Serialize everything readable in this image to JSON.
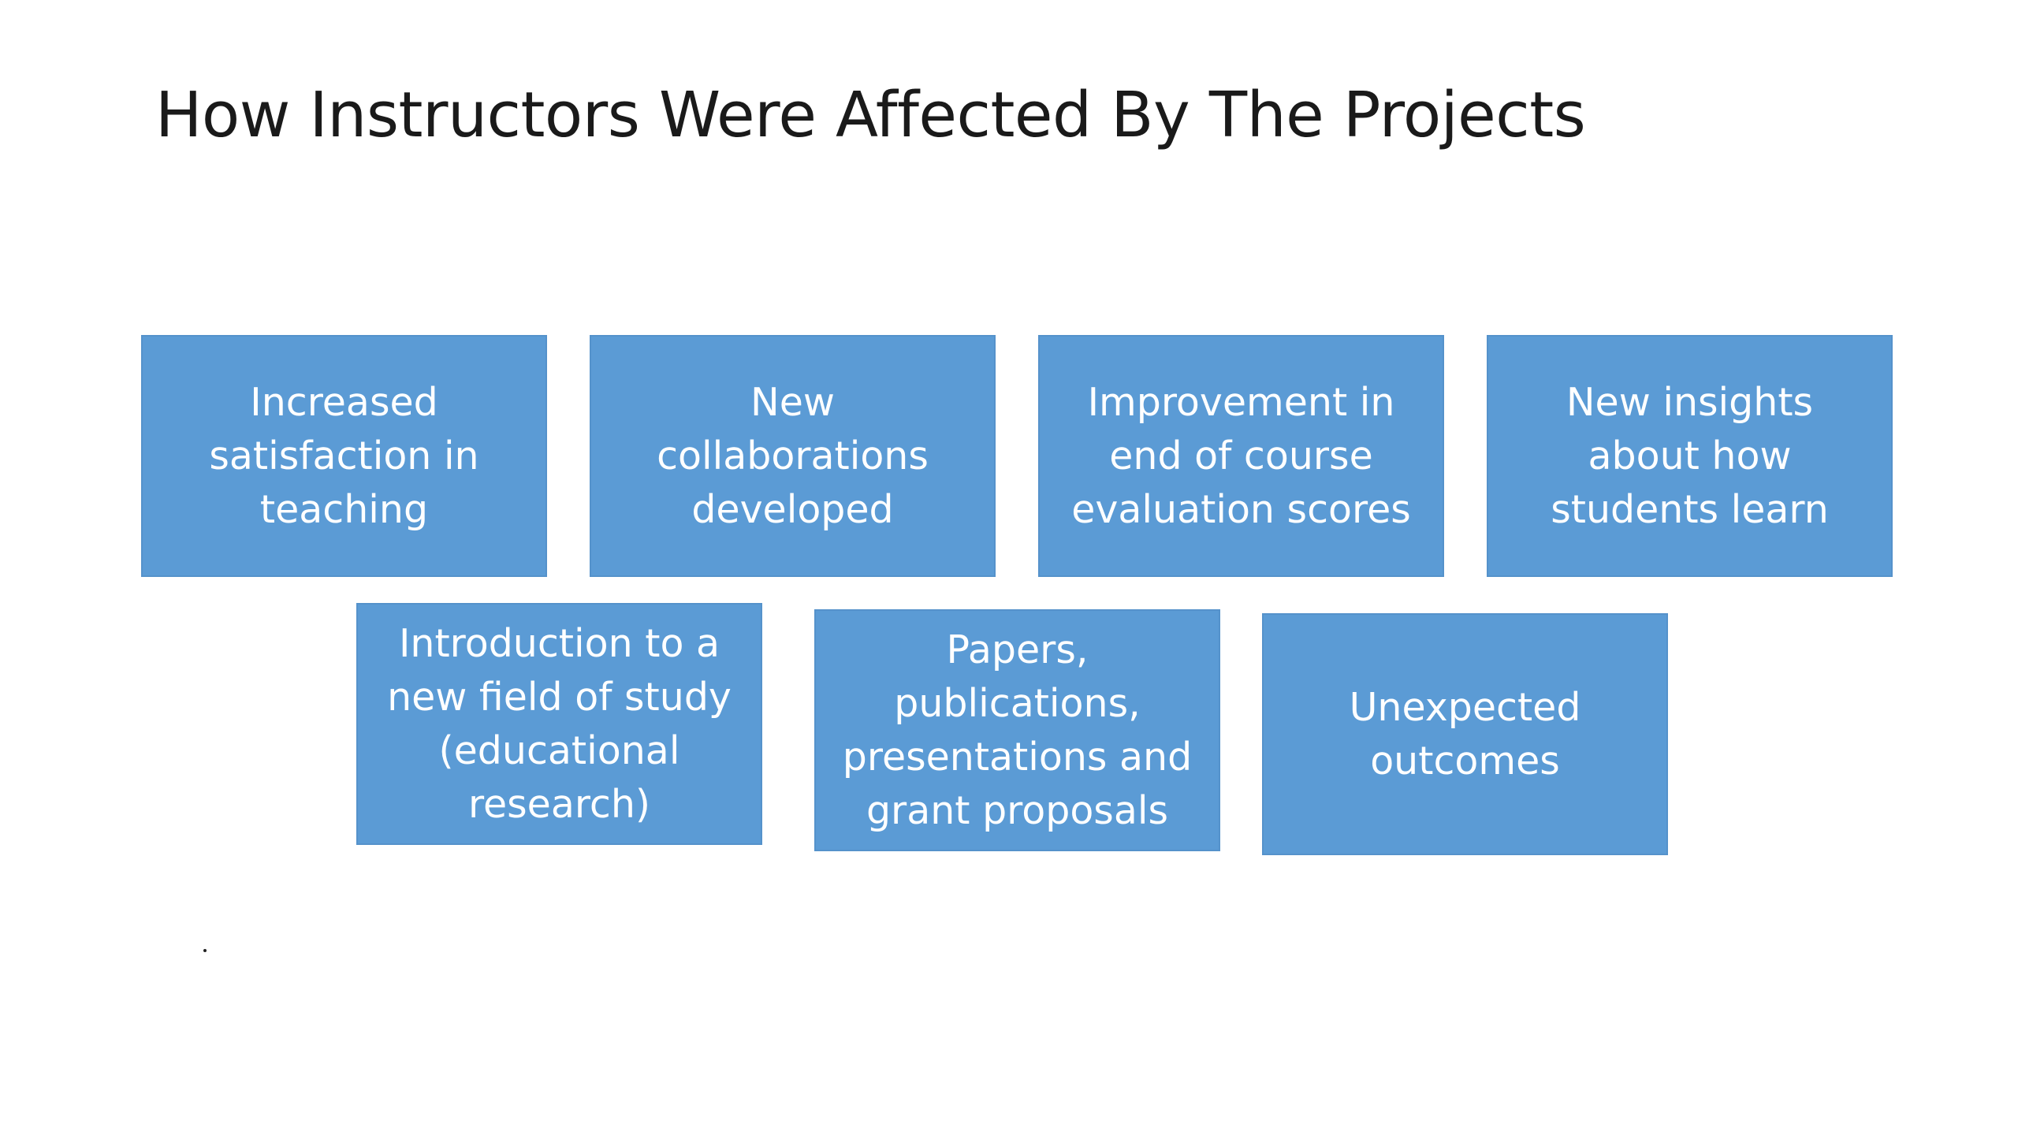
{
  "title": "How Instructors Were Affected By The Projects",
  "boxes": [
    {
      "label": "Increased\nsatisfaction in\nteaching"
    },
    {
      "label": "New\ncollaborations\ndeveloped"
    },
    {
      "label": "Improvement in\nend of course\nevaluation scores"
    },
    {
      "label": "New insights\nabout how\nstudents learn"
    },
    {
      "label": "Introduction to a\nnew field of study\n(educational\nresearch)"
    },
    {
      "label": "Papers,\npublications,\npresentations and\ngrant proposals"
    },
    {
      "label": "Unexpected\noutcomes"
    }
  ],
  "bullet": "."
}
